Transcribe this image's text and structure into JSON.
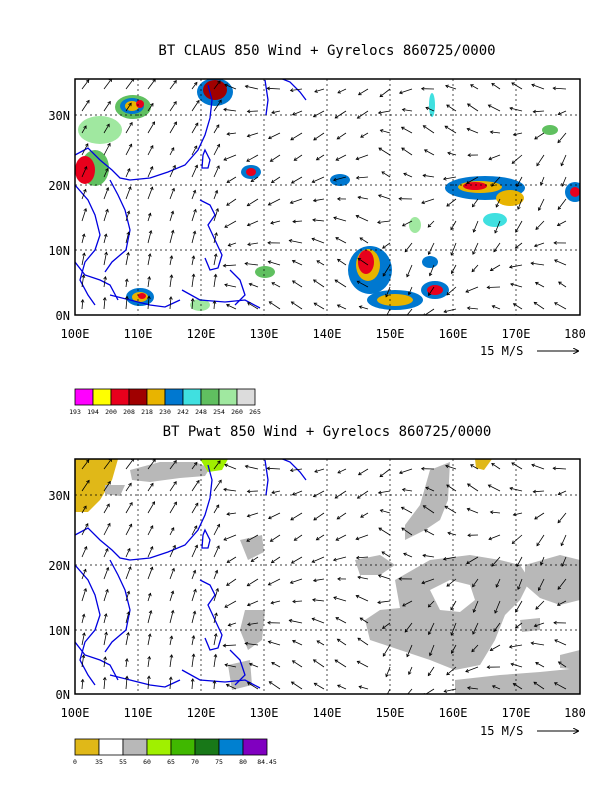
{
  "panels": [
    {
      "id": "claus",
      "title": "BT CLAUS 850 Wind + Gyrelocs 860725/0000",
      "x_ticks": [
        "100E",
        "110E",
        "120E",
        "130E",
        "140E",
        "150E",
        "160E",
        "170E",
        "180"
      ],
      "y_ticks": [
        "0N",
        "10N",
        "20N",
        "30N"
      ],
      "ref_vector_label": "15 M/S",
      "colorbar": {
        "labels": [
          "193",
          "194",
          "200",
          "208",
          "218",
          "230",
          "242",
          "248",
          "254",
          "260",
          "265"
        ],
        "colors": [
          "#ff00ff",
          "#ffff00",
          "#e8001c",
          "#a00000",
          "#e8b400",
          "#0078d0",
          "#40e0e0",
          "#60c060",
          "#a0e8a0",
          "#dcdcdc"
        ]
      }
    },
    {
      "id": "pwat",
      "title": "BT Pwat 850 Wind + Gyrelocs 860725/0000",
      "x_ticks": [
        "100E",
        "110E",
        "120E",
        "130E",
        "140E",
        "150E",
        "160E",
        "170E",
        "180"
      ],
      "y_ticks": [
        "0N",
        "10N",
        "20N",
        "30N"
      ],
      "ref_vector_label": "15 M/S",
      "colorbar": {
        "labels": [
          "0",
          "35",
          "55",
          "60",
          "65",
          "70",
          "75",
          "80",
          "84.45"
        ],
        "colors": [
          "#e0b818",
          "#ffffff",
          "#b8b8b8",
          "#a0f000",
          "#40b800",
          "#187818",
          "#0080d0",
          "#8000c0"
        ]
      }
    }
  ],
  "map": {
    "lon_range": [
      100,
      180
    ],
    "lat_range": [
      0,
      35
    ],
    "coast_color": "#0000e0",
    "grid": "dashed"
  }
}
